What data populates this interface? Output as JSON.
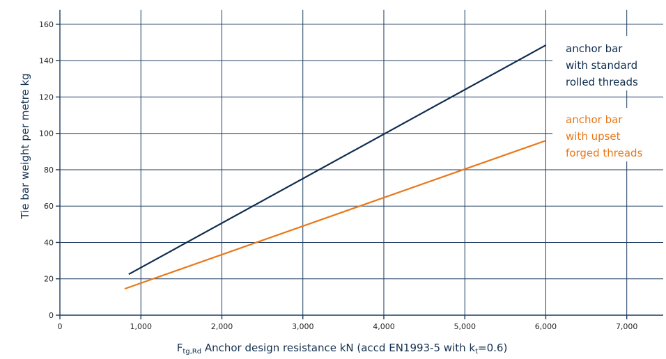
{
  "chart_data": {
    "type": "line",
    "xlabel_main": "F",
    "xlabel_sub": "tg,Rd",
    "xlabel_rest": " Anchor design resistance kN (accd EN1993-5 with k",
    "xlabel_k_sub": "t",
    "xlabel_end": "=0.6)",
    "ylabel": "Tie bar weight per metre kg",
    "xlim": [
      0,
      7450
    ],
    "ylim": [
      0,
      168
    ],
    "x_ticks": [
      {
        "value": 0,
        "label": "0"
      },
      {
        "value": 1000,
        "label": "1,000"
      },
      {
        "value": 2000,
        "label": "2,000"
      },
      {
        "value": 3000,
        "label": "3,000"
      },
      {
        "value": 4000,
        "label": "4,000"
      },
      {
        "value": 5000,
        "label": "5,000"
      },
      {
        "value": 6000,
        "label": "6,000"
      },
      {
        "value": 7000,
        "label": "7,000"
      }
    ],
    "y_ticks": [
      {
        "value": 0,
        "label": "0"
      },
      {
        "value": 20,
        "label": "20"
      },
      {
        "value": 40,
        "label": "40"
      },
      {
        "value": 60,
        "label": "60"
      },
      {
        "value": 80,
        "label": "80"
      },
      {
        "value": 100,
        "label": "100"
      },
      {
        "value": 120,
        "label": "120"
      },
      {
        "value": 140,
        "label": "140"
      },
      {
        "value": 160,
        "label": "160"
      }
    ],
    "grid": true,
    "series": [
      {
        "name_lines": [
          "anchor bar",
          "with standard",
          "rolled threads"
        ],
        "color": "#0f2d4e",
        "points": [
          [
            850,
            22.5
          ],
          [
            6000,
            148.5
          ]
        ]
      },
      {
        "name_lines": [
          "anchor bar",
          "with upset",
          "forged threads"
        ],
        "color": "#e8781a",
        "points": [
          [
            800,
            14.5
          ],
          [
            6000,
            96
          ]
        ]
      }
    ]
  }
}
